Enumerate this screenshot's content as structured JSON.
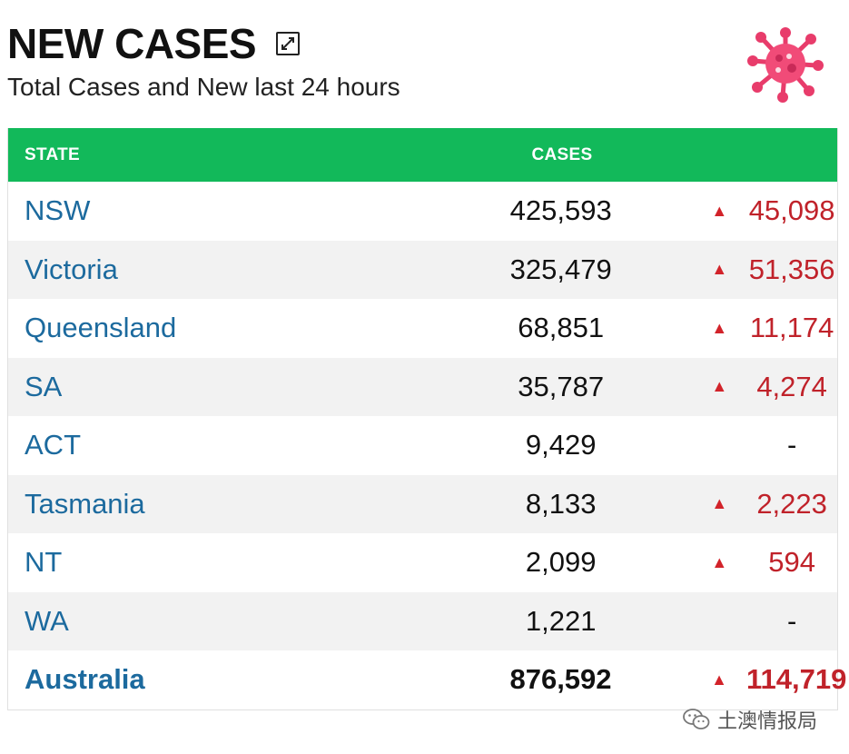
{
  "header": {
    "title": "NEW CASES",
    "subtitle": "Total Cases and New last 24 hours"
  },
  "icons": {
    "expand": "expand-icon",
    "virus": "virus-icon",
    "wechat": "wechat-icon"
  },
  "colors": {
    "header_bg": "#12b95a",
    "state_text": "#1c6a9e",
    "increase": "#c0222a"
  },
  "table": {
    "columns": {
      "state": "STATE",
      "cases": "CASES"
    },
    "rows": [
      {
        "state": "NSW",
        "cases": "425,593",
        "arrow": "▲",
        "new": "45,098"
      },
      {
        "state": "Victoria",
        "cases": "325,479",
        "arrow": "▲",
        "new": "51,356"
      },
      {
        "state": "Queensland",
        "cases": "68,851",
        "arrow": "▲",
        "new": "11,174"
      },
      {
        "state": "SA",
        "cases": "35,787",
        "arrow": "▲",
        "new": "4,274"
      },
      {
        "state": "ACT",
        "cases": "9,429",
        "arrow": "",
        "new": "-"
      },
      {
        "state": "Tasmania",
        "cases": "8,133",
        "arrow": "▲",
        "new": "2,223"
      },
      {
        "state": "NT",
        "cases": "2,099",
        "arrow": "▲",
        "new": "594"
      },
      {
        "state": "WA",
        "cases": "1,221",
        "arrow": "",
        "new": "-"
      }
    ],
    "total": {
      "state": "Australia",
      "cases": "876,592",
      "arrow": "▲",
      "new": "114,719"
    }
  },
  "watermark": {
    "text": "土澳情报局"
  }
}
